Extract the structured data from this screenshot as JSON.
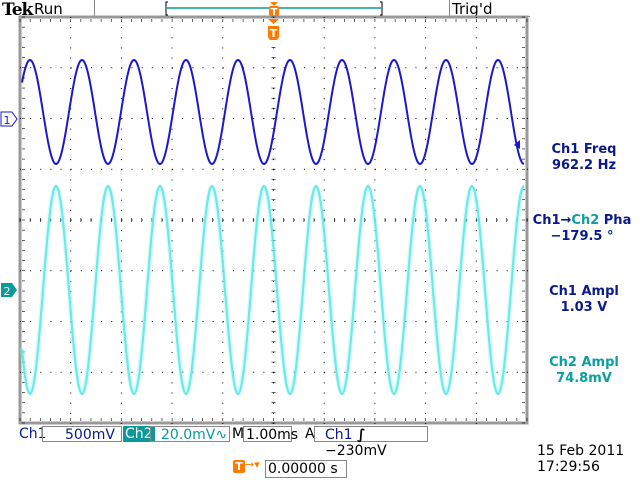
{
  "header": {
    "brand": "Tek",
    "status": "Run",
    "trigger_state": "Trig'd"
  },
  "measurements": [
    {
      "label": "Ch1 Freq",
      "value": "962.2 Hz"
    },
    {
      "label_a": "Ch1",
      "arrow": "→",
      "label_b": "Ch2",
      "label_c": "Pha",
      "value": "−179.5 °"
    },
    {
      "label": "Ch1 Ampl",
      "value": "1.03 V"
    },
    {
      "label": "Ch2 Ampl",
      "value": "74.8mV"
    }
  ],
  "channels": [
    {
      "name": "Ch1",
      "marker": "1",
      "scale": "500mV",
      "color": "#1a1acc"
    },
    {
      "name": "Ch2",
      "marker": "2",
      "scale": "20.0mV",
      "coupling_icon": "∿",
      "color": "#33e0e0"
    }
  ],
  "timebase": {
    "prefix": "M",
    "value": "1.00ms"
  },
  "trigger": {
    "mode": "A",
    "source": "Ch1",
    "slope_icon": "rising-edge",
    "slope_glyph": "∫",
    "level": "−230mV",
    "marker": "T"
  },
  "trigger_position": {
    "value": "0.00000 s"
  },
  "datetime": {
    "date": "15 Feb  2011",
    "time": "17:29:56"
  },
  "colors": {
    "trigger": "#ff7a00",
    "ch1_text": "#0a1a8c",
    "ch2_text": "#0a9a9a"
  }
}
